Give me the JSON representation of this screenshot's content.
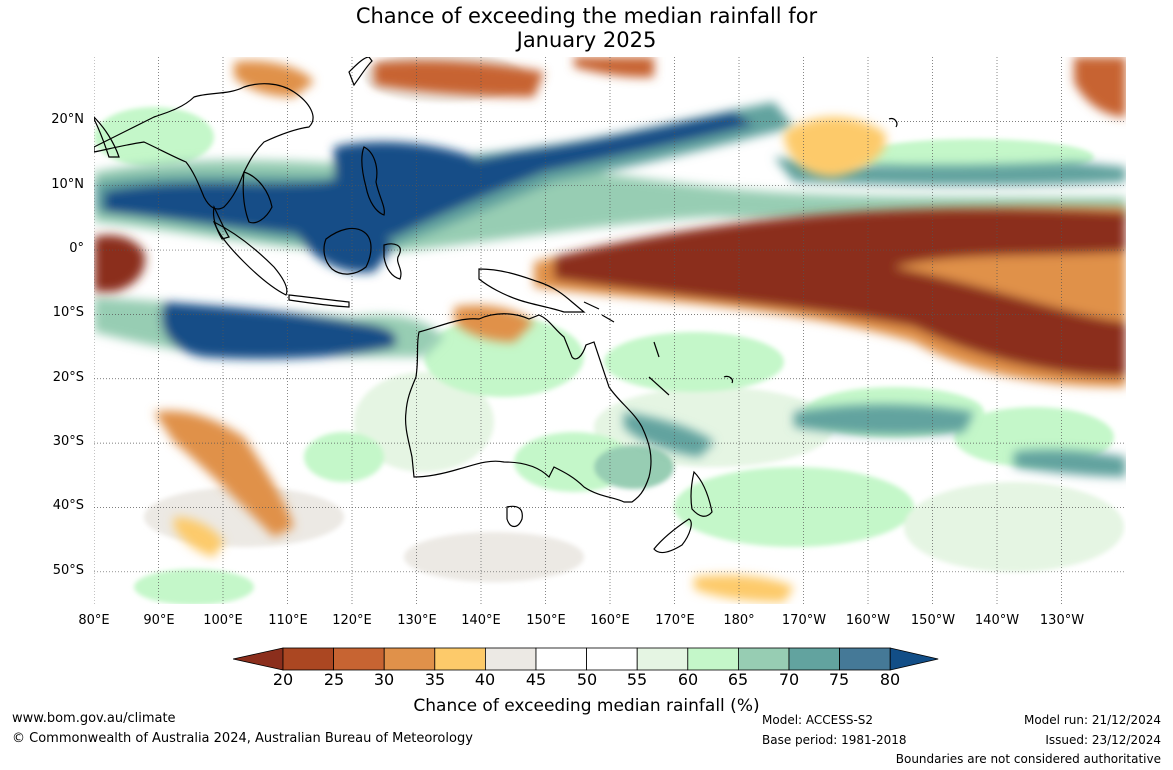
{
  "title": {
    "line1": "Chance of exceeding the median rainfall for",
    "line2": "January 2025"
  },
  "map": {
    "lat_labels": [
      "20°N",
      "10°N",
      "0°",
      "10°S",
      "20°S",
      "30°S",
      "40°S",
      "50°S"
    ],
    "lon_labels": [
      "80°E",
      "90°E",
      "100°E",
      "110°E",
      "120°E",
      "130°E",
      "140°E",
      "150°E",
      "160°E",
      "170°E",
      "180°",
      "170°W",
      "160°W",
      "150°W",
      "140°W",
      "130°W"
    ],
    "lat_values": [
      20,
      10,
      0,
      -10,
      -20,
      -30,
      -40,
      -50
    ],
    "lon_values": [
      80,
      90,
      100,
      110,
      120,
      130,
      140,
      150,
      160,
      170,
      180,
      190,
      200,
      210,
      220,
      230
    ],
    "extent": {
      "lon_min": 80,
      "lon_max": 240,
      "lat_min": -55,
      "lat_max": 30
    }
  },
  "colorbar": {
    "ticks": [
      "20",
      "25",
      "30",
      "35",
      "40",
      "45",
      "50",
      "55",
      "60",
      "65",
      "70",
      "75",
      "80"
    ],
    "colors": [
      "#8b2e1c",
      "#ab4722",
      "#c76432",
      "#e0914a",
      "#fdca6a",
      "#ece9e4",
      "#ffffff",
      "#ffffff",
      "#e5f5e3",
      "#c4f7c9",
      "#97cdb3",
      "#62a39f",
      "#457997",
      "#124e87"
    ],
    "label": "Chance of exceeding median rainfall (%)"
  },
  "footer": {
    "website": "www.bom.gov.au/climate",
    "copyright": "© Commonwealth of Australia 2024, Australian Bureau of Meteorology",
    "model": "Model: ACCESS-S2",
    "base_period": "Base period: 1981-2018",
    "model_run": "Model run: 21/12/2024",
    "issued": "Issued: 23/12/2024",
    "disclaimer": "Boundaries are not considered authoritative"
  }
}
